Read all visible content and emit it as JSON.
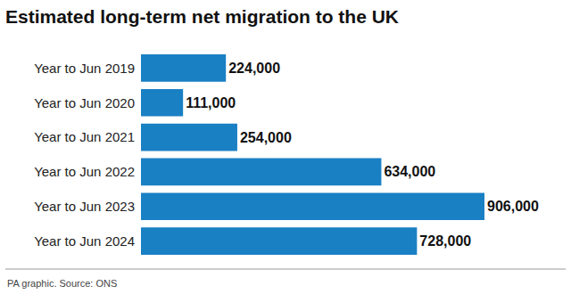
{
  "chart_data": {
    "type": "bar",
    "orientation": "horizontal",
    "title": "Estimated long-term net migration to the UK",
    "annotations": [
      "PA graphic. Source: ONS"
    ],
    "categories": [
      "Year to Jun 2019",
      "Year to Jun 2020",
      "Year to Jun 2021",
      "Year to Jun 2022",
      "Year to Jun 2023",
      "Year to Jun 2024"
    ],
    "values": [
      224000,
      111000,
      254000,
      634000,
      906000,
      728000
    ],
    "value_labels": [
      "224,000",
      "111,000",
      "254,000",
      "634,000",
      "906,000",
      "728,000"
    ],
    "color": "#1a80c4",
    "xlim": [
      0,
      906000
    ],
    "xticks": [],
    "data_labels": true,
    "tick_labels": "y",
    "grid": false
  }
}
